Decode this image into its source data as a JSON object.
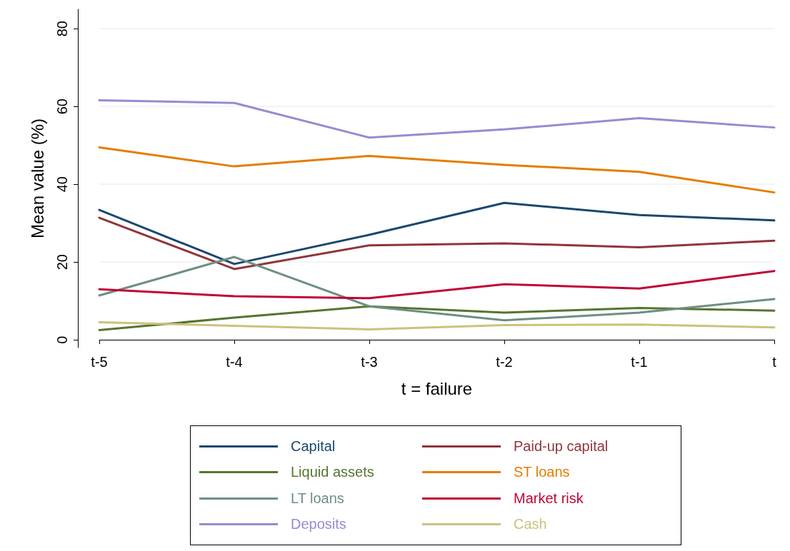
{
  "chart_data": {
    "type": "line",
    "xlabel": "t = failure",
    "ylabel": "Mean value (%)",
    "categories": [
      "t-5",
      "t-4",
      "t-3",
      "t-2",
      "t-1",
      "t"
    ],
    "ylim": [
      -2,
      85
    ],
    "yticks": [
      0,
      20,
      40,
      60,
      80
    ],
    "grid": "y",
    "legend": "bottom",
    "marker": "none",
    "line_style": "solid",
    "series": [
      {
        "name": "Capital",
        "color": "#1a476f",
        "values": [
          33.4,
          19.5,
          27,
          35.2,
          32.1,
          30.7
        ]
      },
      {
        "name": "Paid-up capital",
        "color": "#90353b",
        "values": [
          31.4,
          18.2,
          24.3,
          24.8,
          23.8,
          25.5
        ]
      },
      {
        "name": "Liquid assets",
        "color": "#55752f",
        "values": [
          2.5,
          5.7,
          8.6,
          7,
          8.2,
          7.5
        ]
      },
      {
        "name": "ST loans",
        "color": "#e37e00",
        "values": [
          49.5,
          44.6,
          47.3,
          45,
          43.2,
          37.9
        ]
      },
      {
        "name": "LT loans",
        "color": "#6e8e84",
        "values": [
          11.4,
          21.3,
          8.6,
          5,
          7,
          10.5
        ]
      },
      {
        "name": "Market risk",
        "color": "#c10534",
        "values": [
          13,
          11.2,
          10.7,
          14.3,
          13.2,
          17.7
        ]
      },
      {
        "name": "Deposits",
        "color": "#938dd2",
        "values": [
          61.6,
          60.9,
          52,
          54.1,
          57,
          54.6
        ]
      },
      {
        "name": "Cash",
        "color": "#cac27e",
        "values": [
          4.5,
          3.6,
          2.7,
          3.8,
          3.9,
          3.2
        ]
      }
    ]
  }
}
